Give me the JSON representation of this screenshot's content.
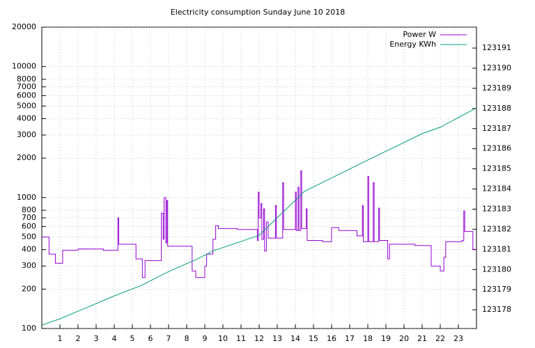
{
  "chart_data": {
    "type": "line",
    "title": "Electricity consumption Sunday June 10 2018",
    "xlim": [
      0,
      24
    ],
    "xticks": [
      1,
      2,
      3,
      4,
      5,
      6,
      7,
      8,
      9,
      10,
      11,
      12,
      13,
      14,
      15,
      16,
      17,
      18,
      19,
      20,
      21,
      22,
      23
    ],
    "ylim": [
      100,
      20000
    ],
    "ylog": true,
    "yticks": [
      100,
      200,
      300,
      400,
      500,
      600,
      700,
      800,
      1000,
      2000,
      3000,
      4000,
      5000,
      6000,
      7000,
      8000,
      10000,
      20000
    ],
    "y2lim": [
      123177.07,
      123192.04
    ],
    "y2ticks": [
      123178,
      123179,
      123180,
      123181,
      123182,
      123183,
      123184,
      123185,
      123186,
      123187,
      123188,
      123189,
      123190,
      123191
    ],
    "grid": true,
    "legend": "top-right",
    "series": [
      {
        "name": "Power W",
        "color": "#9400d3",
        "step": true,
        "x": [
          0,
          0.4,
          0.75,
          1.15,
          2.0,
          3.4,
          4.2,
          4.25,
          5.2,
          5.55,
          5.7,
          6.6,
          6.7,
          6.75,
          6.85,
          6.9,
          6.95,
          8.3,
          8.5,
          9.0,
          9.1,
          9.45,
          9.6,
          9.75,
          10.8,
          11.9,
          11.95,
          12.0,
          12.1,
          12.15,
          12.25,
          12.3,
          12.4,
          12.5,
          12.9,
          12.95,
          13.3,
          13.35,
          14.0,
          14.05,
          14.15,
          14.2,
          14.3,
          14.35,
          14.6,
          14.65,
          15.5,
          16.0,
          16.4,
          17.4,
          17.7,
          17.75,
          18.0,
          18.05,
          18.3,
          18.35,
          18.6,
          18.65,
          19.1,
          19.2,
          20.6,
          21.5,
          22.0,
          22.2,
          22.3,
          23.2,
          23.3,
          23.35,
          23.8,
          24
        ],
        "values": [
          500,
          370,
          315,
          395,
          405,
          395,
          700,
          440,
          340,
          245,
          330,
          760,
          480,
          1000,
          450,
          950,
          425,
          275,
          245,
          300,
          370,
          480,
          610,
          580,
          570,
          470,
          1100,
          700,
          900,
          480,
          820,
          390,
          650,
          490,
          870,
          490,
          1300,
          570,
          1100,
          560,
          1200,
          560,
          1600,
          580,
          820,
          470,
          460,
          590,
          560,
          510,
          870,
          460,
          1450,
          460,
          1300,
          460,
          830,
          470,
          340,
          440,
          430,
          300,
          275,
          350,
          460,
          470,
          790,
          550,
          400,
          400
        ]
      },
      {
        "name": "Energy KWh",
        "color": "#009e73",
        "axis": "y2",
        "x": [
          0,
          1,
          4,
          5.5,
          7,
          8.5,
          9.5,
          12,
          14.5,
          18,
          21,
          22,
          24
        ],
        "values": [
          123177.24,
          123177.55,
          123178.69,
          123179.21,
          123179.9,
          123180.49,
          123180.94,
          123181.7,
          123183.88,
          123185.44,
          123186.75,
          123187.07,
          123188.03
        ]
      }
    ]
  }
}
